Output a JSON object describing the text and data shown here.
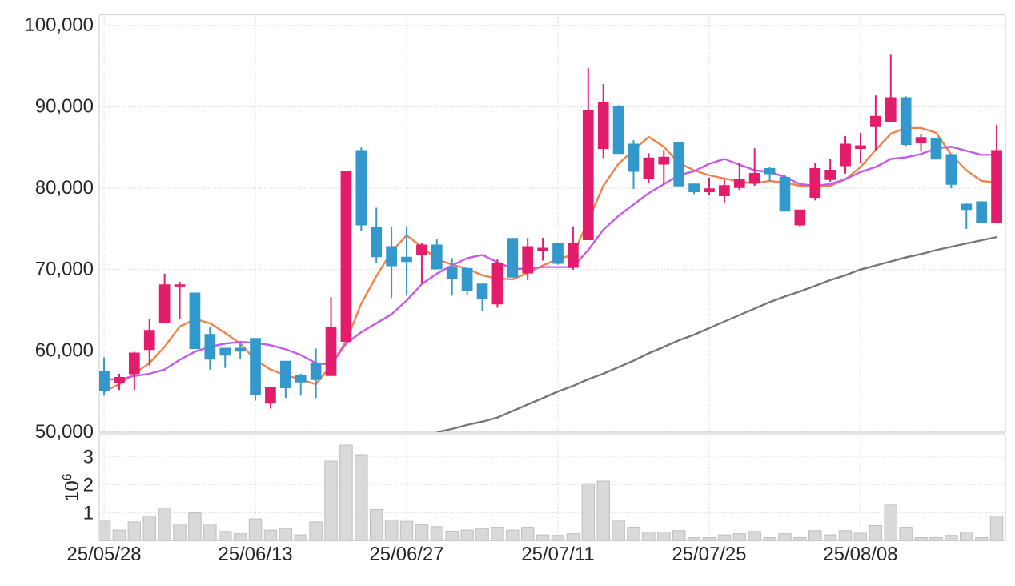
{
  "chart_data": [
    {
      "type": "candlestick",
      "categories": [
        null,
        null,
        null,
        null,
        null,
        null,
        null,
        null,
        null,
        null,
        null,
        null,
        null,
        null,
        null,
        null,
        null,
        null,
        null,
        null,
        null,
        null,
        null,
        null,
        null,
        null,
        null,
        null,
        null,
        null,
        null,
        null,
        null,
        null,
        null,
        null,
        null,
        null,
        null,
        null,
        null,
        null,
        null,
        null,
        null,
        null,
        null,
        null,
        null,
        null,
        null,
        null,
        null,
        null,
        null,
        null,
        null,
        null,
        null,
        null
      ],
      "ohlc": [
        [
          57500,
          59200,
          54500,
          55200
        ],
        [
          56100,
          57200,
          55200,
          56700
        ],
        [
          57200,
          59900,
          55200,
          59700
        ],
        [
          60200,
          63900,
          58200,
          62500
        ],
        [
          63500,
          69500,
          63500,
          68100
        ],
        [
          68000,
          68500,
          63900,
          68100
        ],
        [
          67100,
          67100,
          60300,
          60300
        ],
        [
          62000,
          62900,
          57700,
          59000
        ],
        [
          60300,
          60300,
          57900,
          59500
        ],
        [
          60300,
          60900,
          59000,
          60000
        ],
        [
          61500,
          61500,
          53900,
          54700
        ],
        [
          53600,
          55500,
          52900,
          55500
        ],
        [
          58700,
          58700,
          54200,
          55500
        ],
        [
          57000,
          57200,
          54500,
          56200
        ],
        [
          58400,
          60300,
          54200,
          56500
        ],
        [
          57000,
          66600,
          57000,
          62900
        ],
        [
          61200,
          82100,
          61200,
          82100
        ],
        [
          84600,
          85000,
          74700,
          75500
        ],
        [
          75100,
          77600,
          70800,
          71600
        ],
        [
          72800,
          75300,
          66500,
          70500
        ],
        [
          71500,
          75200,
          66800,
          71000
        ],
        [
          71900,
          73300,
          68400,
          73000
        ],
        [
          73000,
          73700,
          70100,
          70100
        ],
        [
          70300,
          71400,
          66800,
          68900
        ],
        [
          70100,
          70100,
          66800,
          67500
        ],
        [
          68200,
          68200,
          64900,
          66500
        ],
        [
          65800,
          71300,
          65300,
          70700
        ],
        [
          73800,
          73800,
          69100,
          69100
        ],
        [
          69600,
          73900,
          68700,
          72800
        ],
        [
          72400,
          73900,
          71100,
          72600
        ],
        [
          73200,
          73200,
          70600,
          70800
        ],
        [
          70300,
          75300,
          70000,
          73200
        ],
        [
          73700,
          94800,
          73700,
          89500
        ],
        [
          84900,
          92800,
          83700,
          90500
        ],
        [
          90000,
          90200,
          84300,
          84300
        ],
        [
          85400,
          85900,
          79900,
          82100
        ],
        [
          81200,
          84300,
          80700,
          83700
        ],
        [
          83000,
          84700,
          80500,
          83800
        ],
        [
          85600,
          85600,
          80300,
          80300
        ],
        [
          80500,
          80500,
          79300,
          79600
        ],
        [
          79600,
          81300,
          79200,
          79900
        ],
        [
          79100,
          81100,
          78200,
          80300
        ],
        [
          80100,
          83100,
          79800,
          81000
        ],
        [
          80700,
          84900,
          80300,
          81800
        ],
        [
          82400,
          82600,
          80900,
          81800
        ],
        [
          81300,
          81600,
          77200,
          77200
        ],
        [
          75500,
          77300,
          75300,
          77300
        ],
        [
          78900,
          83100,
          78500,
          82400
        ],
        [
          81100,
          83600,
          80800,
          82200
        ],
        [
          82800,
          86400,
          81800,
          85400
        ],
        [
          84900,
          86800,
          83100,
          85200
        ],
        [
          87600,
          91400,
          84700,
          88800
        ],
        [
          88200,
          96400,
          88200,
          91100
        ],
        [
          91100,
          91300,
          85200,
          85400
        ],
        [
          85600,
          86700,
          84500,
          86200
        ],
        [
          86100,
          86200,
          83600,
          83600
        ],
        [
          84100,
          84200,
          80000,
          80500
        ],
        [
          78000,
          78100,
          75000,
          77400
        ],
        [
          78300,
          78400,
          75700,
          75800
        ],
        [
          75800,
          87800,
          75800,
          84600
        ]
      ],
      "colors": [
        "#3399cc",
        "#e31c6b",
        "#e31c6b",
        "#e31c6b",
        "#e31c6b",
        "#e31c6b",
        "#3399cc",
        "#3399cc",
        "#3399cc",
        "#3399cc",
        "#3399cc",
        "#e31c6b",
        "#3399cc",
        "#3399cc",
        "#3399cc",
        "#e31c6b",
        "#e31c6b",
        "#3399cc",
        "#3399cc",
        "#3399cc",
        "#3399cc",
        "#e31c6b",
        "#3399cc",
        "#3399cc",
        "#3399cc",
        "#3399cc",
        "#e31c6b",
        "#3399cc",
        "#e31c6b",
        "#e31c6b",
        "#3399cc",
        "#e31c6b",
        "#e31c6b",
        "#e31c6b",
        "#3399cc",
        "#3399cc",
        "#e31c6b",
        "#e31c6b",
        "#3399cc",
        "#3399cc",
        "#e31c6b",
        "#e31c6b",
        "#e31c6b",
        "#e31c6b",
        "#3399cc",
        "#3399cc",
        "#e31c6b",
        "#e31c6b",
        "#e31c6b",
        "#e31c6b",
        "#e31c6b",
        "#e31c6b",
        "#e31c6b",
        "#3399cc",
        "#e31c6b",
        "#3399cc",
        "#3399cc",
        "#3399cc",
        "#3399cc",
        "#e31c6b"
      ],
      "series": [
        {
          "type": "line",
          "color": "#f0824a",
          "values": [
            55000,
            55900,
            57200,
            58500,
            60500,
            63000,
            63900,
            63400,
            62200,
            60900,
            58900,
            57700,
            57000,
            56500,
            55900,
            58200,
            61200,
            65800,
            69200,
            72200,
            74200,
            72800,
            71300,
            70600,
            70100,
            69300,
            68900,
            68800,
            69600,
            70500,
            71300,
            71800,
            null,
            80300,
            83000,
            84700,
            86300,
            85100,
            83100,
            82200,
            81600,
            81200,
            80800,
            80600,
            80900,
            80700,
            80300,
            80300,
            80300,
            81100,
            82600,
            84700,
            86700,
            87400,
            87400,
            86800,
            84100,
            82200,
            80900,
            80700
          ]
        },
        {
          "type": "line",
          "color": "#c45ce8",
          "values": [
            56500,
            56500,
            56900,
            57200,
            57700,
            58900,
            59900,
            60500,
            60900,
            61100,
            61000,
            60700,
            60200,
            59500,
            58500,
            58300,
            60900,
            62300,
            63400,
            64500,
            66200,
            68200,
            69500,
            70500,
            71400,
            71800,
            70900,
            70100,
            70100,
            70300,
            70300,
            70300,
            72400,
            74900,
            76600,
            78000,
            79400,
            80500,
            81600,
            82100,
            83000,
            83600,
            82900,
            82200,
            82000,
            81400,
            80500,
            80300,
            80500,
            81100,
            82000,
            82600,
            83600,
            83800,
            84200,
            84900,
            85100,
            84600,
            84100,
            84100
          ]
        },
        {
          "type": "line",
          "color": "#767676",
          "values": [
            null,
            null,
            null,
            null,
            null,
            null,
            null,
            null,
            null,
            null,
            null,
            null,
            null,
            null,
            null,
            null,
            null,
            null,
            null,
            null,
            null,
            null,
            50000,
            50400,
            50900,
            51300,
            51800,
            52600,
            53400,
            54200,
            55000,
            55700,
            56500,
            57200,
            58000,
            58800,
            59700,
            60500,
            61300,
            62000,
            62800,
            63600,
            64400,
            65200,
            66000,
            66700,
            67300,
            68000,
            68700,
            69300,
            70000,
            70500,
            71000,
            71500,
            71900,
            72400,
            72800,
            73200,
            73600,
            74000
          ]
        }
      ],
      "ylim": [
        50000,
        101300
      ],
      "yticks": [
        {
          "value": 50000,
          "label": "50,000"
        },
        {
          "value": 60000,
          "label": "60,000"
        },
        {
          "value": 70000,
          "label": "70,000"
        },
        {
          "value": 80000,
          "label": "80,000"
        },
        {
          "value": 90000,
          "label": "90,000"
        },
        {
          "value": 100000,
          "label": "100,000"
        }
      ],
      "grid": true,
      "tick_labels": "y"
    },
    {
      "type": "bar",
      "categories": [
        "25/05/28",
        null,
        null,
        null,
        null,
        null,
        null,
        null,
        null,
        null,
        "25/06/13",
        null,
        null,
        null,
        null,
        null,
        null,
        null,
        null,
        null,
        "25/06/27",
        null,
        null,
        null,
        null,
        null,
        null,
        null,
        null,
        null,
        "25/07/11",
        null,
        null,
        null,
        null,
        null,
        null,
        null,
        null,
        null,
        "25/07/25",
        null,
        null,
        null,
        null,
        null,
        null,
        null,
        null,
        null,
        "25/08/08",
        null,
        null,
        null,
        null,
        null,
        null,
        null,
        null,
        null
      ],
      "values": [
        0.73,
        0.38,
        0.67,
        0.88,
        1.17,
        0.59,
        0.99,
        0.59,
        0.33,
        0.25,
        0.78,
        0.38,
        0.44,
        0.21,
        0.67,
        2.83,
        3.4,
        3.06,
        1.11,
        0.73,
        0.69,
        0.57,
        0.5,
        0.34,
        0.38,
        0.44,
        0.48,
        0.38,
        0.48,
        0.21,
        0.19,
        0.25,
        2.03,
        2.12,
        0.73,
        0.48,
        0.31,
        0.31,
        0.36,
        0.11,
        0.11,
        0.21,
        0.25,
        0.33,
        0.11,
        0.25,
        0.11,
        0.36,
        0.21,
        0.36,
        0.27,
        0.54,
        1.3,
        0.48,
        0.11,
        0.11,
        0.19,
        0.31,
        0.11,
        0.88
      ],
      "color": "#d9d9d9",
      "ylabel": "10$^{6}$",
      "ylim": [
        0,
        3.8
      ],
      "yticks": [
        1,
        2,
        3
      ],
      "grid": true
    }
  ]
}
